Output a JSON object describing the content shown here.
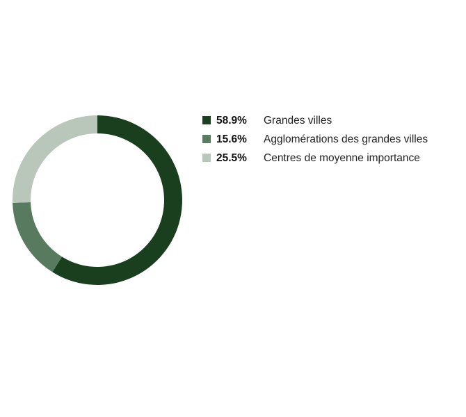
{
  "chart_data": {
    "type": "pie",
    "variant": "donut",
    "title": "",
    "legend_position": "right",
    "slices": [
      {
        "value": 58.9,
        "value_label": "58.9%",
        "label": "Grandes villes",
        "color": "#1a3f1f"
      },
      {
        "value": 15.6,
        "value_label": "15.6%",
        "label": "Agglomérations des grandes villes",
        "color": "#587a5e"
      },
      {
        "value": 25.5,
        "value_label": "25.5%",
        "label": "Centres de moyenne importance",
        "color": "#b9c7bb"
      }
    ]
  }
}
